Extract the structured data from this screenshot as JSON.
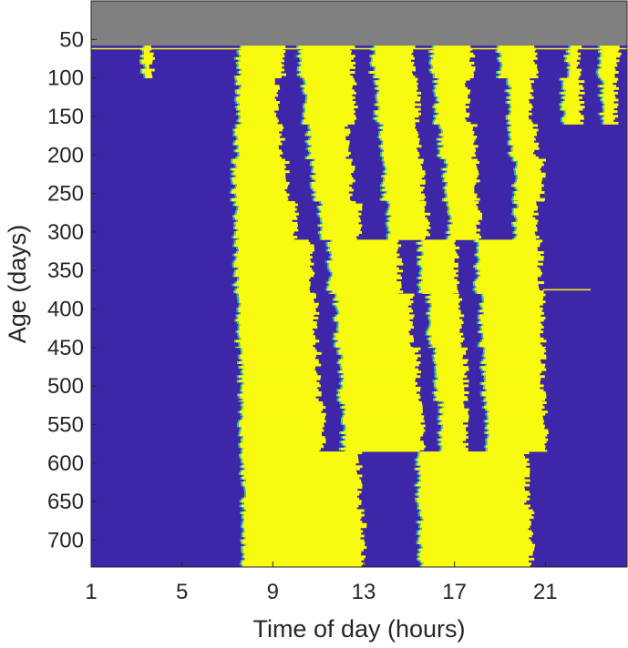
{
  "chart_data": {
    "type": "heatmap",
    "title": "",
    "xlabel": "Time of day (hours)",
    "ylabel": "Age (days)",
    "x_ticks": [
      1,
      5,
      9,
      13,
      17,
      21
    ],
    "y_ticks": [
      50,
      100,
      150,
      200,
      250,
      300,
      350,
      400,
      450,
      500,
      550,
      600,
      650,
      700
    ],
    "xlim": [
      1,
      24.6
    ],
    "ylim": [
      0,
      735
    ],
    "grid": false,
    "colormap": {
      "no_data": "#808080",
      "inactive": "#3E26A8",
      "active": "#F9FB0E",
      "transition": [
        "#2F9DF5",
        "#1FC8A0",
        "#7CC66A"
      ]
    },
    "no_data_range_days": [
      0,
      58
    ],
    "active_segments": [
      {
        "from_day": 58,
        "to_day": 100,
        "bouts": [
          [
            3.3,
            3.7
          ],
          [
            7.5,
            9.5
          ],
          [
            10.2,
            12.5
          ],
          [
            13.4,
            15.2
          ],
          [
            16.0,
            17.8
          ],
          [
            19.0,
            20.6
          ],
          [
            22.0,
            22.5
          ],
          [
            23.4,
            24.2
          ]
        ]
      },
      {
        "from_day": 100,
        "to_day": 160,
        "bouts": [
          [
            7.5,
            9.2
          ],
          [
            10.4,
            12.6
          ],
          [
            13.6,
            15.4
          ],
          [
            16.2,
            17.6
          ],
          [
            19.4,
            20.4
          ],
          [
            21.8,
            22.6
          ],
          [
            23.5,
            24.1
          ]
        ]
      },
      {
        "from_day": 160,
        "to_day": 205,
        "bouts": [
          [
            7.4,
            9.4
          ],
          [
            10.6,
            12.3
          ],
          [
            13.8,
            15.4
          ],
          [
            16.4,
            17.9
          ],
          [
            19.5,
            20.6
          ]
        ]
      },
      {
        "from_day": 205,
        "to_day": 260,
        "bouts": [
          [
            7.3,
            9.6
          ],
          [
            10.8,
            12.5
          ],
          [
            13.9,
            15.6
          ],
          [
            16.6,
            18.0
          ],
          [
            19.7,
            20.9
          ]
        ]
      },
      {
        "from_day": 260,
        "to_day": 310,
        "bouts": [
          [
            7.4,
            10.0
          ],
          [
            11.1,
            12.8
          ],
          [
            14.1,
            15.8
          ],
          [
            16.8,
            18.1
          ],
          [
            19.7,
            20.6
          ]
        ]
      },
      {
        "from_day": 310,
        "to_day": 380,
        "bouts": [
          [
            7.4,
            10.7
          ],
          [
            11.5,
            14.6
          ],
          [
            15.5,
            17.1
          ],
          [
            18.0,
            20.8
          ]
        ]
      },
      {
        "from_day": 380,
        "to_day": 450,
        "bouts": [
          [
            7.5,
            10.9
          ],
          [
            11.8,
            15.1
          ],
          [
            15.9,
            17.3
          ],
          [
            18.2,
            20.9
          ]
        ]
      },
      {
        "from_day": 450,
        "to_day": 520,
        "bouts": [
          [
            7.6,
            11.0
          ],
          [
            12.0,
            15.4
          ],
          [
            16.2,
            17.5
          ],
          [
            18.3,
            20.9
          ]
        ]
      },
      {
        "from_day": 520,
        "to_day": 585,
        "bouts": [
          [
            7.6,
            11.2
          ],
          [
            12.1,
            15.6
          ],
          [
            16.4,
            17.5
          ],
          [
            18.4,
            21.0
          ]
        ]
      },
      {
        "from_day": 585,
        "to_day": 660,
        "bouts": [
          [
            7.7,
            12.8
          ],
          [
            15.4,
            20.2
          ]
        ]
      },
      {
        "from_day": 660,
        "to_day": 735,
        "bouts": [
          [
            7.7,
            13.0
          ],
          [
            15.5,
            20.4
          ]
        ]
      }
    ],
    "events": [
      {
        "type": "horizontal_line",
        "day": 62,
        "x_from": 1,
        "x_to": 24.6
      },
      {
        "type": "horizontal_line",
        "day": 375,
        "x_from": 20.9,
        "x_to": 23.0
      }
    ]
  }
}
